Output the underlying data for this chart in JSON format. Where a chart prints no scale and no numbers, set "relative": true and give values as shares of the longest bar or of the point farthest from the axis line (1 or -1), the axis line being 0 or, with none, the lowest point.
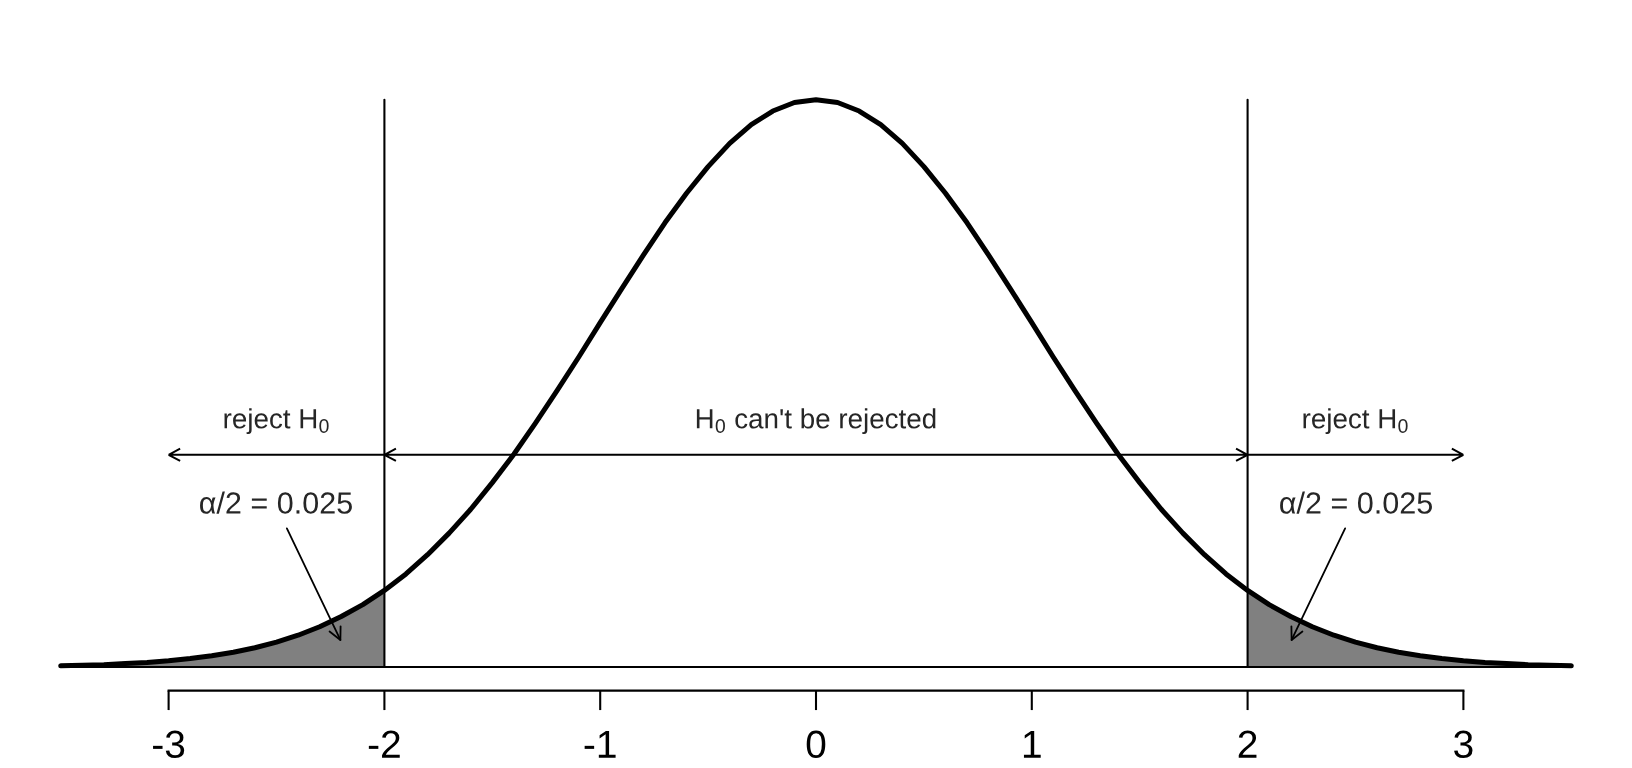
{
  "chart_data": {
    "type": "line",
    "relative": true,
    "xlim": [
      -3.5,
      3.5
    ],
    "xticks": [
      -3,
      -2,
      -1,
      0,
      1,
      2,
      3
    ],
    "series": [
      {
        "color": "#000000",
        "x": [
          -3.5,
          -3.4,
          -3.3,
          -3.2,
          -3.1,
          -3.0,
          -2.9,
          -2.8,
          -2.7,
          -2.6,
          -2.5,
          -2.4,
          -2.3,
          -2.2,
          -2.1,
          -2.0,
          -1.9,
          -1.8,
          -1.7,
          -1.6,
          -1.5,
          -1.4,
          -1.3,
          -1.2,
          -1.1,
          -1.0,
          -0.9,
          -0.8,
          -0.7,
          -0.6,
          -0.5,
          -0.4,
          -0.3,
          -0.2,
          -0.1,
          0.0,
          0.1,
          0.2,
          0.3,
          0.4,
          0.5,
          0.6,
          0.7,
          0.8,
          0.9,
          1.0,
          1.1,
          1.2,
          1.3,
          1.4,
          1.5,
          1.6,
          1.7,
          1.8,
          1.9,
          2.0,
          2.1,
          2.2,
          2.3,
          2.4,
          2.5,
          2.6,
          2.7,
          2.8,
          2.9,
          3.0,
          3.1,
          3.2,
          3.3,
          3.4,
          3.5
        ],
        "values": [
          0.002,
          0.003,
          0.004,
          0.006,
          0.008,
          0.011,
          0.015,
          0.02,
          0.026,
          0.034,
          0.044,
          0.056,
          0.071,
          0.089,
          0.11,
          0.135,
          0.164,
          0.198,
          0.236,
          0.278,
          0.325,
          0.375,
          0.43,
          0.487,
          0.546,
          0.607,
          0.667,
          0.726,
          0.783,
          0.835,
          0.882,
          0.923,
          0.956,
          0.98,
          0.995,
          1.0,
          0.995,
          0.98,
          0.956,
          0.923,
          0.882,
          0.835,
          0.783,
          0.726,
          0.667,
          0.607,
          0.546,
          0.487,
          0.43,
          0.375,
          0.325,
          0.278,
          0.236,
          0.198,
          0.164,
          0.135,
          0.11,
          0.089,
          0.071,
          0.056,
          0.044,
          0.034,
          0.026,
          0.02,
          0.015,
          0.011,
          0.008,
          0.006,
          0.004,
          0.003,
          0.002
        ]
      },
      {
        "type": "area",
        "color": "#808080",
        "x": [
          -3.5,
          -3.4,
          -3.3,
          -3.2,
          -3.1,
          -3.0,
          -2.9,
          -2.8,
          -2.7,
          -2.6,
          -2.5,
          -2.4,
          -2.3,
          -2.2,
          -2.1,
          -2.0
        ],
        "values": [
          0.002,
          0.003,
          0.004,
          0.006,
          0.008,
          0.011,
          0.015,
          0.02,
          0.026,
          0.034,
          0.044,
          0.056,
          0.071,
          0.089,
          0.11,
          0.135
        ]
      },
      {
        "type": "area",
        "color": "#808080",
        "x": [
          2.0,
          2.1,
          2.2,
          2.3,
          2.4,
          2.5,
          2.6,
          2.7,
          2.8,
          2.9,
          3.0,
          3.1,
          3.2,
          3.3,
          3.4,
          3.5
        ],
        "values": [
          0.135,
          0.11,
          0.089,
          0.071,
          0.056,
          0.044,
          0.034,
          0.026,
          0.02,
          0.015,
          0.011,
          0.008,
          0.006,
          0.004,
          0.003,
          0.002
        ]
      }
    ],
    "ref_lines": [
      {
        "axis": "x",
        "value": -2,
        "color": "#000000"
      },
      {
        "axis": "x",
        "value": 2,
        "color": "#000000"
      }
    ],
    "annotations": [
      "reject H$_{0}$",
      "H$_{0}$ can't be rejected",
      "reject H$_{0}$",
      "α/2 = 0.025",
      "α/2 = 0.025"
    ]
  }
}
